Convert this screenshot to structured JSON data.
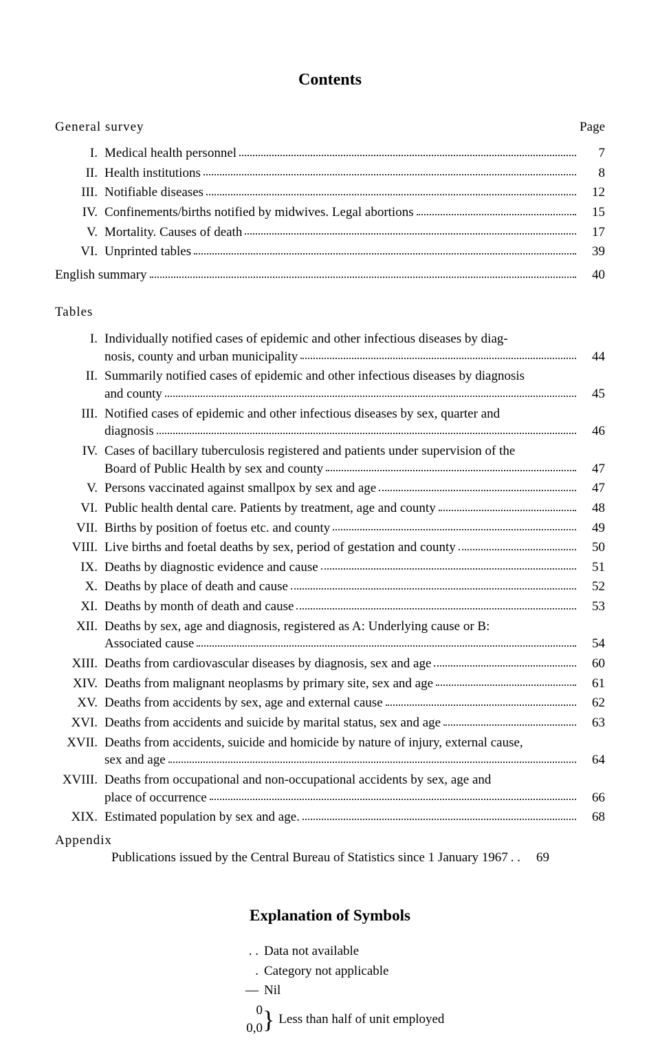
{
  "title": "Contents",
  "page_label": "Page",
  "section_survey": "General survey",
  "survey_items": [
    {
      "num": "I.",
      "text": "Medical health personnel",
      "page": "7"
    },
    {
      "num": "II.",
      "text": "Health institutions",
      "page": "8"
    },
    {
      "num": "III.",
      "text": "Notifiable diseases",
      "page": "12"
    },
    {
      "num": "IV.",
      "text": "Confinements/births notified by midwives. Legal abortions",
      "page": "15"
    },
    {
      "num": "V.",
      "text": "Mortality. Causes of death",
      "page": "17"
    },
    {
      "num": "VI.",
      "text": "Unprinted tables",
      "page": "39"
    }
  ],
  "english_summary": {
    "text": "English summary",
    "page": "40"
  },
  "section_tables": "Tables",
  "tables_items": [
    {
      "num": "I.",
      "lines": [
        "Individually notified cases of epidemic and other infectious diseases by diag-",
        "nosis, county and urban municipality"
      ],
      "page": "44"
    },
    {
      "num": "II.",
      "lines": [
        "Summarily notified cases of epidemic and other infectious diseases by diagnosis",
        "and county"
      ],
      "page": "45"
    },
    {
      "num": "III.",
      "lines": [
        "Notified cases of epidemic and other infectious diseases by sex, quarter and",
        "diagnosis"
      ],
      "page": "46"
    },
    {
      "num": "IV.",
      "lines": [
        "Cases of bacillary tuberculosis registered and patients under supervision of the",
        "Board of Public Health by sex and county"
      ],
      "page": "47"
    },
    {
      "num": "V.",
      "lines": [
        "Persons vaccinated against smallpox by sex and age"
      ],
      "page": "47"
    },
    {
      "num": "VI.",
      "lines": [
        "Public health dental care. Patients by treatment, age and county"
      ],
      "page": "48"
    },
    {
      "num": "VII.",
      "lines": [
        "Births by position of foetus etc. and county"
      ],
      "page": "49"
    },
    {
      "num": "VIII.",
      "lines": [
        "Live births and foetal deaths by sex, period of gestation and county"
      ],
      "page": "50"
    },
    {
      "num": "IX.",
      "lines": [
        "Deaths by diagnostic evidence and cause"
      ],
      "page": "51"
    },
    {
      "num": "X.",
      "lines": [
        "Deaths by place of death and cause"
      ],
      "page": "52"
    },
    {
      "num": "XI.",
      "lines": [
        "Deaths by month of death and cause"
      ],
      "page": "53"
    },
    {
      "num": "XII.",
      "lines": [
        "Deaths by sex, age and diagnosis, registered as A: Underlying cause or B:",
        "Associated cause"
      ],
      "page": "54"
    },
    {
      "num": "XIII.",
      "lines": [
        "Deaths from cardiovascular diseases by diagnosis, sex and age"
      ],
      "page": "60"
    },
    {
      "num": "XIV.",
      "lines": [
        "Deaths from malignant neoplasms by primary site, sex and age"
      ],
      "page": "61"
    },
    {
      "num": "XV.",
      "lines": [
        "Deaths from accidents by sex, age and external cause"
      ],
      "page": "62"
    },
    {
      "num": "XVI.",
      "lines": [
        "Deaths from accidents and suicide by marital status, sex and age"
      ],
      "page": "63"
    },
    {
      "num": "XVII.",
      "lines": [
        "Deaths from accidents, suicide and homicide by nature of injury, external cause,",
        "sex and age"
      ],
      "page": "64"
    },
    {
      "num": "XVIII.",
      "lines": [
        "Deaths from occupational and non-occupational accidents by sex, age and",
        "place of occurrence"
      ],
      "page": "66"
    },
    {
      "num": "XIX.",
      "lines": [
        "Estimated population by sex and age."
      ],
      "page": "68"
    }
  ],
  "appendix_label": "Appendix",
  "appendix_item": {
    "text": "Publications issued by the Central Bureau of Statistics since 1 January 1967",
    "page": "69"
  },
  "explanation_title": "Explanation of Symbols",
  "symbols": [
    {
      "key": ". .",
      "desc": "Data not available"
    },
    {
      "key": ".",
      "desc": "Category not applicable"
    },
    {
      "key": "—",
      "desc": "Nil"
    }
  ],
  "brace_keys": [
    "0",
    "0,0"
  ],
  "brace_desc": "Less than half of unit employed"
}
